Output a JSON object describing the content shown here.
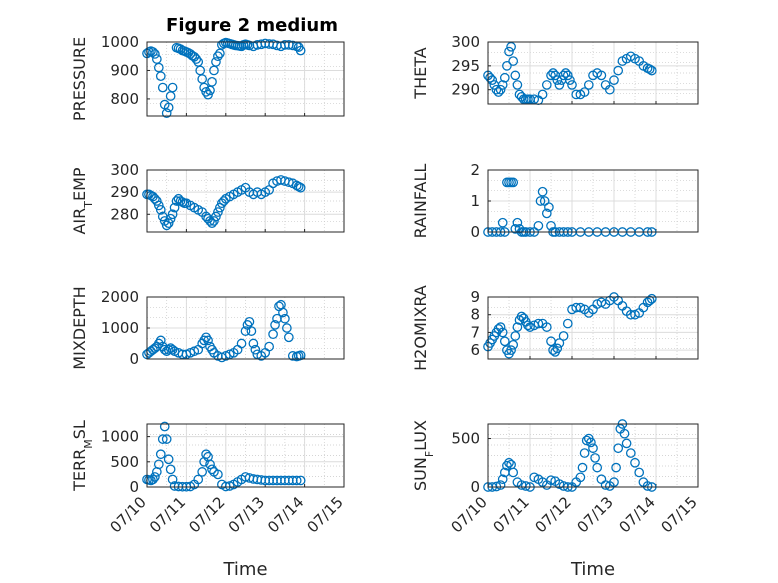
{
  "figure": {
    "title": "Figure 2 medium",
    "marker_color": "#0072BD"
  },
  "chart_data": [
    {
      "type": "scatter",
      "title": "Figure 2 medium",
      "ylabel": "PRESSURE",
      "xlabel": "",
      "ylim": [
        740,
        1000
      ],
      "yticks": [
        800,
        900,
        1000
      ],
      "yticklabels": [
        "800",
        "900",
        "1000"
      ],
      "xlim": [
        0,
        5
      ],
      "xticklabels": [],
      "grid": true,
      "series": [
        {
          "x": [
            0.0,
            0.05,
            0.1,
            0.15,
            0.2,
            0.25,
            0.3,
            0.35,
            0.4,
            0.45,
            0.5,
            0.55,
            0.6,
            0.65,
            0.75,
            0.8,
            0.85,
            0.9,
            0.95,
            1.0,
            1.05,
            1.1,
            1.15,
            1.2,
            1.25,
            1.3,
            1.35,
            1.4,
            1.45,
            1.5,
            1.55,
            1.6,
            1.65,
            1.7,
            1.75,
            1.8,
            1.85,
            1.9,
            1.95,
            2.0,
            2.05,
            2.1,
            2.15,
            2.2,
            2.25,
            2.3,
            2.35,
            2.4,
            2.45,
            2.5,
            2.55,
            2.6,
            2.7,
            2.8,
            2.9,
            3.0,
            3.1,
            3.2,
            3.3,
            3.4,
            3.5,
            3.6,
            3.7,
            3.8,
            3.85,
            3.9
          ],
          "y": [
            960,
            965,
            968,
            965,
            958,
            940,
            910,
            880,
            840,
            780,
            750,
            770,
            810,
            840,
            980,
            978,
            975,
            970,
            968,
            965,
            962,
            958,
            952,
            948,
            940,
            930,
            900,
            870,
            840,
            825,
            815,
            830,
            860,
            900,
            930,
            950,
            960,
            990,
            995,
            998,
            996,
            994,
            992,
            990,
            988,
            987,
            986,
            985,
            990,
            992,
            990,
            988,
            985,
            990,
            992,
            995,
            993,
            992,
            988,
            985,
            990,
            990,
            988,
            985,
            982,
            970
          ]
        }
      ]
    },
    {
      "type": "scatter",
      "title": "",
      "ylabel": "THETA",
      "xlabel": "",
      "ylim": [
        287,
        300
      ],
      "yticks": [
        290,
        295,
        300
      ],
      "yticklabels": [
        "290",
        "295",
        "300"
      ],
      "xlim": [
        0,
        5
      ],
      "xticklabels": [],
      "grid": true,
      "series": [
        {
          "x": [
            0.0,
            0.05,
            0.1,
            0.15,
            0.2,
            0.25,
            0.3,
            0.35,
            0.4,
            0.45,
            0.5,
            0.55,
            0.6,
            0.65,
            0.7,
            0.75,
            0.8,
            0.85,
            0.9,
            0.95,
            1.0,
            1.1,
            1.2,
            1.3,
            1.4,
            1.5,
            1.55,
            1.6,
            1.65,
            1.7,
            1.75,
            1.8,
            1.85,
            1.9,
            1.95,
            2.0,
            2.1,
            2.2,
            2.3,
            2.4,
            2.5,
            2.6,
            2.7,
            2.8,
            2.9,
            3.0,
            3.1,
            3.2,
            3.3,
            3.4,
            3.5,
            3.6,
            3.7,
            3.8,
            3.85,
            3.9
          ],
          "y": [
            293,
            292.5,
            292,
            291,
            290,
            289.5,
            290,
            291,
            292.5,
            295,
            298,
            299,
            296,
            293,
            291,
            289,
            288.5,
            288,
            288,
            288,
            288,
            288,
            287.8,
            289,
            291,
            293,
            293.5,
            293,
            292,
            291,
            292,
            293,
            293.5,
            293,
            292,
            291,
            289,
            289,
            289.5,
            291,
            293,
            293.5,
            293,
            291,
            290,
            292,
            294,
            296,
            296.5,
            297,
            296.5,
            296,
            295,
            294.5,
            294.3,
            294
          ]
        }
      ]
    },
    {
      "type": "scatter",
      "title": "",
      "ylabel": "AIR_TEMP",
      "xlabel": "",
      "ylim": [
        272,
        300
      ],
      "yticks": [
        280,
        290,
        300
      ],
      "yticklabels": [
        "280",
        "290",
        "300"
      ],
      "xlim": [
        0,
        5
      ],
      "xticklabels": [],
      "grid": true,
      "series": [
        {
          "x": [
            0.0,
            0.05,
            0.1,
            0.15,
            0.2,
            0.25,
            0.3,
            0.35,
            0.4,
            0.45,
            0.5,
            0.55,
            0.6,
            0.65,
            0.7,
            0.75,
            0.8,
            0.85,
            0.9,
            0.95,
            1.0,
            1.1,
            1.2,
            1.3,
            1.4,
            1.5,
            1.55,
            1.6,
            1.65,
            1.7,
            1.75,
            1.8,
            1.85,
            1.9,
            1.95,
            2.0,
            2.1,
            2.2,
            2.3,
            2.4,
            2.5,
            2.6,
            2.7,
            2.8,
            2.9,
            3.0,
            3.1,
            3.2,
            3.3,
            3.4,
            3.5,
            3.6,
            3.7,
            3.8,
            3.85,
            3.9
          ],
          "y": [
            289,
            289,
            288.5,
            288,
            287,
            286,
            284,
            282,
            279,
            277,
            275,
            276,
            278,
            280,
            283,
            286,
            287,
            286,
            285.5,
            285,
            285,
            284,
            283,
            282,
            281,
            279,
            278,
            277,
            276,
            277,
            279,
            281,
            283,
            285,
            286,
            287,
            288,
            289,
            290,
            291,
            292,
            290,
            289,
            290,
            289,
            290,
            291,
            294,
            295,
            295.5,
            295,
            294.5,
            294,
            293,
            292.5,
            292
          ]
        }
      ]
    },
    {
      "type": "scatter",
      "title": "",
      "ylabel": "RAINFALL",
      "xlabel": "",
      "ylim": [
        0,
        2
      ],
      "yticks": [
        0,
        1,
        2
      ],
      "yticklabels": [
        "0",
        "1",
        "2"
      ],
      "xlim": [
        0,
        5
      ],
      "xticklabels": [],
      "grid": true,
      "series": [
        {
          "x": [
            0.0,
            0.1,
            0.2,
            0.3,
            0.35,
            0.4,
            0.45,
            0.5,
            0.55,
            0.6,
            0.65,
            0.7,
            0.75,
            0.8,
            0.85,
            0.9,
            1.0,
            1.1,
            1.2,
            1.25,
            1.3,
            1.35,
            1.4,
            1.45,
            1.5,
            1.55,
            1.6,
            1.7,
            1.8,
            1.9,
            2.0,
            2.2,
            2.4,
            2.6,
            2.8,
            3.0,
            3.2,
            3.4,
            3.6,
            3.8,
            3.9
          ],
          "y": [
            0,
            0,
            0,
            0,
            0.3,
            0,
            1.6,
            1.6,
            1.6,
            1.6,
            0.1,
            0.3,
            0.1,
            0,
            0,
            0,
            0,
            0,
            0.2,
            1.0,
            1.3,
            1.0,
            0.6,
            0.8,
            0.2,
            0,
            0,
            0,
            0,
            0,
            0,
            0,
            0,
            0,
            0,
            0,
            0,
            0,
            0,
            0,
            0
          ]
        }
      ]
    },
    {
      "type": "scatter",
      "title": "",
      "ylabel": "MIXDEPTH",
      "xlabel": "",
      "ylim": [
        0,
        2000
      ],
      "yticks": [
        0,
        1000,
        2000
      ],
      "yticklabels": [
        "0",
        "1000",
        "2000"
      ],
      "xlim": [
        0,
        5
      ],
      "xticklabels": [],
      "grid": true,
      "series": [
        {
          "x": [
            0.0,
            0.05,
            0.1,
            0.15,
            0.2,
            0.25,
            0.3,
            0.35,
            0.4,
            0.45,
            0.5,
            0.55,
            0.6,
            0.65,
            0.7,
            0.8,
            0.9,
            1.0,
            1.1,
            1.2,
            1.3,
            1.4,
            1.45,
            1.5,
            1.55,
            1.6,
            1.65,
            1.7,
            1.8,
            1.9,
            2.0,
            2.1,
            2.2,
            2.3,
            2.4,
            2.5,
            2.55,
            2.6,
            2.65,
            2.7,
            2.75,
            2.8,
            2.9,
            3.0,
            3.1,
            3.2,
            3.25,
            3.3,
            3.35,
            3.4,
            3.45,
            3.5,
            3.55,
            3.6,
            3.7,
            3.8,
            3.85,
            3.9
          ],
          "y": [
            150,
            200,
            250,
            300,
            350,
            400,
            500,
            600,
            400,
            300,
            250,
            300,
            350,
            300,
            250,
            200,
            150,
            150,
            200,
            250,
            300,
            500,
            600,
            700,
            600,
            400,
            300,
            200,
            100,
            50,
            100,
            150,
            200,
            300,
            500,
            900,
            1100,
            1200,
            900,
            500,
            300,
            150,
            100,
            200,
            400,
            800,
            1100,
            1300,
            1700,
            1750,
            1500,
            1300,
            1000,
            700,
            100,
            80,
            100,
            120
          ]
        }
      ]
    },
    {
      "type": "scatter",
      "title": "",
      "ylabel": "H2OMIXRA",
      "xlabel": "",
      "ylim": [
        5.5,
        9
      ],
      "yticks": [
        6,
        7,
        8,
        9
      ],
      "yticklabels": [
        "6",
        "7",
        "8",
        "9"
      ],
      "xlim": [
        0,
        5
      ],
      "xticklabels": [],
      "grid": true,
      "series": [
        {
          "x": [
            0.0,
            0.05,
            0.1,
            0.15,
            0.2,
            0.25,
            0.3,
            0.35,
            0.4,
            0.45,
            0.5,
            0.55,
            0.6,
            0.65,
            0.7,
            0.75,
            0.8,
            0.85,
            0.9,
            0.95,
            1.0,
            1.1,
            1.2,
            1.3,
            1.4,
            1.5,
            1.55,
            1.6,
            1.65,
            1.7,
            1.8,
            1.9,
            2.0,
            2.1,
            2.2,
            2.3,
            2.4,
            2.5,
            2.6,
            2.7,
            2.8,
            2.9,
            3.0,
            3.1,
            3.2,
            3.3,
            3.4,
            3.5,
            3.6,
            3.7,
            3.8,
            3.85,
            3.9
          ],
          "y": [
            6.2,
            6.4,
            6.6,
            6.8,
            7.0,
            7.2,
            7.3,
            7.0,
            6.5,
            6.0,
            5.8,
            6.0,
            6.3,
            6.8,
            7.3,
            7.7,
            7.9,
            7.8,
            7.6,
            7.4,
            7.3,
            7.4,
            7.5,
            7.5,
            7.3,
            6.5,
            6.0,
            5.9,
            6.1,
            6.4,
            6.8,
            7.5,
            8.3,
            8.4,
            8.4,
            8.3,
            8.1,
            8.3,
            8.6,
            8.7,
            8.6,
            8.8,
            9.0,
            8.8,
            8.5,
            8.2,
            8.0,
            8.0,
            8.1,
            8.4,
            8.7,
            8.8,
            8.9
          ]
        }
      ]
    },
    {
      "type": "scatter",
      "title": "",
      "ylabel": "TERR_MSL",
      "xlabel": "Time",
      "ylim": [
        0,
        1250
      ],
      "yticks": [
        0,
        500,
        1000
      ],
      "yticklabels": [
        "0",
        "500",
        "1000"
      ],
      "xlim": [
        0,
        5
      ],
      "xticklabels": [
        "07/10",
        "07/11",
        "07/12",
        "07/13",
        "07/14",
        "07/15"
      ],
      "grid": true,
      "series": [
        {
          "x": [
            0.0,
            0.05,
            0.1,
            0.15,
            0.2,
            0.25,
            0.3,
            0.35,
            0.4,
            0.45,
            0.5,
            0.55,
            0.6,
            0.65,
            0.7,
            0.8,
            0.9,
            1.0,
            1.1,
            1.2,
            1.3,
            1.4,
            1.45,
            1.5,
            1.55,
            1.6,
            1.65,
            1.7,
            1.8,
            1.9,
            2.0,
            2.1,
            2.2,
            2.3,
            2.4,
            2.5,
            2.6,
            2.7,
            2.8,
            2.9,
            3.0,
            3.1,
            3.2,
            3.3,
            3.4,
            3.5,
            3.6,
            3.7,
            3.8,
            3.9
          ],
          "y": [
            150,
            140,
            130,
            150,
            200,
            300,
            450,
            650,
            950,
            1200,
            950,
            550,
            350,
            150,
            20,
            10,
            5,
            5,
            10,
            50,
            150,
            300,
            500,
            650,
            600,
            450,
            350,
            300,
            250,
            50,
            10,
            20,
            50,
            100,
            150,
            200,
            180,
            160,
            150,
            140,
            130,
            130,
            130,
            130,
            130,
            130,
            130,
            130,
            130,
            130
          ]
        }
      ]
    },
    {
      "type": "scatter",
      "title": "",
      "ylabel": "SUN_FLUX",
      "xlabel": "Time",
      "ylim": [
        0,
        650
      ],
      "yticks": [
        0,
        500
      ],
      "yticklabels": [
        "0",
        "500"
      ],
      "xlim": [
        0,
        5
      ],
      "xticklabels": [
        "07/10",
        "07/11",
        "07/12",
        "07/13",
        "07/14",
        "07/15"
      ],
      "grid": true,
      "series": [
        {
          "x": [
            0.0,
            0.1,
            0.2,
            0.3,
            0.35,
            0.4,
            0.45,
            0.5,
            0.55,
            0.6,
            0.7,
            0.8,
            0.9,
            1.0,
            1.1,
            1.2,
            1.3,
            1.4,
            1.5,
            1.6,
            1.7,
            1.8,
            1.9,
            2.0,
            2.1,
            2.2,
            2.25,
            2.3,
            2.35,
            2.4,
            2.45,
            2.5,
            2.55,
            2.6,
            2.7,
            2.8,
            2.9,
            3.0,
            3.05,
            3.1,
            3.15,
            3.2,
            3.25,
            3.3,
            3.4,
            3.5,
            3.6,
            3.7,
            3.8,
            3.9
          ],
          "y": [
            0,
            0,
            5,
            20,
            80,
            150,
            220,
            250,
            230,
            150,
            50,
            20,
            10,
            0,
            100,
            80,
            50,
            20,
            70,
            60,
            30,
            10,
            0,
            0,
            50,
            100,
            200,
            350,
            480,
            500,
            460,
            400,
            300,
            200,
            80,
            20,
            10,
            50,
            200,
            400,
            600,
            650,
            550,
            450,
            350,
            250,
            150,
            50,
            10,
            0
          ]
        }
      ]
    }
  ]
}
